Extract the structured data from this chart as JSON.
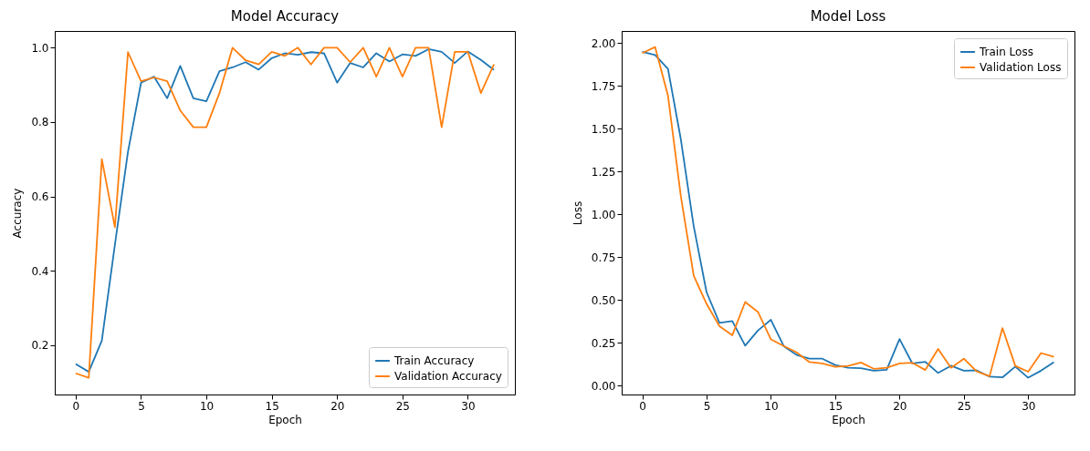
{
  "chart_data": [
    {
      "type": "line",
      "title": "Model Accuracy",
      "xlabel": "Epoch",
      "ylabel": "Accuracy",
      "x": [
        0,
        1,
        2,
        3,
        4,
        5,
        6,
        7,
        8,
        9,
        10,
        11,
        12,
        13,
        14,
        15,
        16,
        17,
        18,
        19,
        20,
        21,
        22,
        23,
        24,
        25,
        26,
        27,
        28,
        29,
        30,
        31,
        32
      ],
      "series": [
        {
          "name": "Train Accuracy",
          "color": "#1f77b4",
          "values": [
            0.149,
            0.128,
            0.212,
            0.47,
            0.72,
            0.906,
            0.922,
            0.864,
            0.951,
            0.864,
            0.856,
            0.937,
            0.947,
            0.961,
            0.941,
            0.972,
            0.985,
            0.981,
            0.988,
            0.985,
            0.906,
            0.959,
            0.947,
            0.985,
            0.963,
            0.982,
            0.978,
            0.996,
            0.989,
            0.959,
            0.99,
            0.967,
            0.94
          ]
        },
        {
          "name": "Validation Accuracy",
          "color": "#ff7f0e",
          "values": [
            0.124,
            0.112,
            0.7,
            0.517,
            0.988,
            0.91,
            0.92,
            0.91,
            0.831,
            0.786,
            0.786,
            0.878,
            1.0,
            0.966,
            0.955,
            0.989,
            0.978,
            1.0,
            0.955,
            1.0,
            1.0,
            0.961,
            1.0,
            0.922,
            1.0,
            0.922,
            1.0,
            1.0,
            0.786,
            0.989,
            0.989,
            0.878,
            0.955
          ]
        }
      ],
      "xlim": [
        -1.6,
        33.6
      ],
      "xticks": [
        0,
        5,
        10,
        15,
        20,
        25,
        30
      ],
      "ylim": [
        0.067,
        1.045
      ],
      "yticks": [
        0.2,
        0.4,
        0.6,
        0.8,
        {
          "value": 1,
          "label": "1.0"
        }
      ],
      "grid": false,
      "legend": "bottom right"
    },
    {
      "type": "line",
      "title": "Model Loss",
      "xlabel": "Epoch",
      "ylabel": "Loss",
      "x": [
        0,
        1,
        2,
        3,
        4,
        5,
        6,
        7,
        8,
        9,
        10,
        11,
        12,
        13,
        14,
        15,
        16,
        17,
        18,
        19,
        20,
        21,
        22,
        23,
        24,
        25,
        26,
        27,
        28,
        29,
        30,
        31,
        32
      ],
      "series": [
        {
          "name": "Train Loss",
          "color": "#1f77b4",
          "values": [
            1.948,
            1.93,
            1.849,
            1.437,
            0.93,
            0.545,
            0.366,
            0.377,
            0.233,
            0.322,
            0.384,
            0.23,
            0.179,
            0.157,
            0.157,
            0.12,
            0.104,
            0.102,
            0.087,
            0.092,
            0.272,
            0.129,
            0.139,
            0.074,
            0.116,
            0.087,
            0.089,
            0.052,
            0.048,
            0.111,
            0.046,
            0.087,
            0.137
          ]
        },
        {
          "name": "Validation Loss",
          "color": "#ff7f0e",
          "values": [
            1.941,
            1.976,
            1.692,
            1.105,
            0.641,
            0.477,
            0.347,
            0.294,
            0.488,
            0.429,
            0.27,
            0.231,
            0.194,
            0.137,
            0.129,
            0.109,
            0.115,
            0.135,
            0.098,
            0.104,
            0.129,
            0.133,
            0.091,
            0.214,
            0.104,
            0.157,
            0.083,
            0.055,
            0.336,
            0.115,
            0.081,
            0.19,
            0.168
          ]
        }
      ],
      "xlim": [
        -1.6,
        33.6
      ],
      "xticks": [
        0,
        5,
        10,
        15,
        20,
        25,
        30
      ],
      "ylim": [
        -0.052,
        2.07
      ],
      "yticks": [
        {
          "value": 0,
          "label": "0.00"
        },
        {
          "value": 0.25,
          "label": "0.25"
        },
        {
          "value": 0.5,
          "label": "0.50"
        },
        {
          "value": 0.75,
          "label": "0.75"
        },
        {
          "value": 1,
          "label": "1.00"
        },
        {
          "value": 1.25,
          "label": "1.25"
        },
        {
          "value": 1.5,
          "label": "1.50"
        },
        {
          "value": 1.75,
          "label": "1.75"
        },
        {
          "value": 2,
          "label": "2.00"
        }
      ],
      "grid": false,
      "legend": "top right"
    }
  ]
}
